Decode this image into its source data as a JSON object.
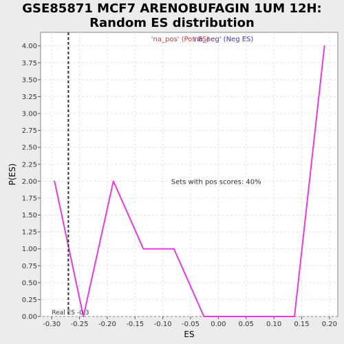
{
  "chart_data": {
    "type": "line",
    "title_line1": "GSE85871 MCF7 ARENOBUFAGIN 1UM 12H:",
    "title_line2": "Random ES distribution",
    "xlabel": "ES",
    "ylabel": "P(ES)",
    "xlim": [
      -0.32,
      0.215
    ],
    "ylim": [
      0,
      4.2
    ],
    "x_ticks": [
      -0.3,
      -0.25,
      -0.2,
      -0.15,
      -0.1,
      -0.05,
      0.0,
      0.05,
      0.1,
      0.15,
      0.2
    ],
    "x_tick_labels": [
      "-0.30",
      "-0.25",
      "-0.20",
      "-0.15",
      "-0.10",
      "-0.05",
      "0.00",
      "0.05",
      "0.10",
      "0.15",
      "0.20"
    ],
    "y_ticks": [
      0,
      0.25,
      0.5,
      0.75,
      1.0,
      1.25,
      1.5,
      1.75,
      2.0,
      2.25,
      2.5,
      2.75,
      3.0,
      3.25,
      3.5,
      3.75,
      4.0
    ],
    "y_tick_labels": [
      "0.00",
      "0.25",
      "0.50",
      "0.75",
      "1.00",
      "1.25",
      "1.50",
      "1.75",
      "2.00",
      "2.25",
      "2.50",
      "2.75",
      "3.00",
      "3.25",
      "3.50",
      "3.75",
      "4.00"
    ],
    "grid": true,
    "legend": {
      "placement": "top-center",
      "pos_label": "'na_pos' (Pos ES)",
      "neg_label": "'na_neg' (Neg ES)"
    },
    "series": [
      {
        "name": "'na_pos' (Pos ES)",
        "color": "#e838e8",
        "x": [
          -0.295,
          -0.243,
          -0.189,
          -0.135,
          -0.08,
          -0.026,
          0.028,
          0.083,
          0.137,
          0.191
        ],
        "y": [
          2.0,
          0.0,
          2.0,
          1.0,
          1.0,
          0.0,
          0.0,
          0.0,
          0.0,
          4.0
        ]
      }
    ],
    "real_es": {
      "value": -0.27,
      "label": "Real ES -0.3"
    },
    "annotation": "Sets with pos scores: 40%",
    "colors": {
      "background": "#ececec",
      "plot_background": "#ffffff",
      "grid": "#e4e4e4",
      "line": "#e838e8",
      "pos_legend": "#e03030",
      "neg_legend": "#3a3ab8",
      "real_es_line": "#333333"
    }
  }
}
